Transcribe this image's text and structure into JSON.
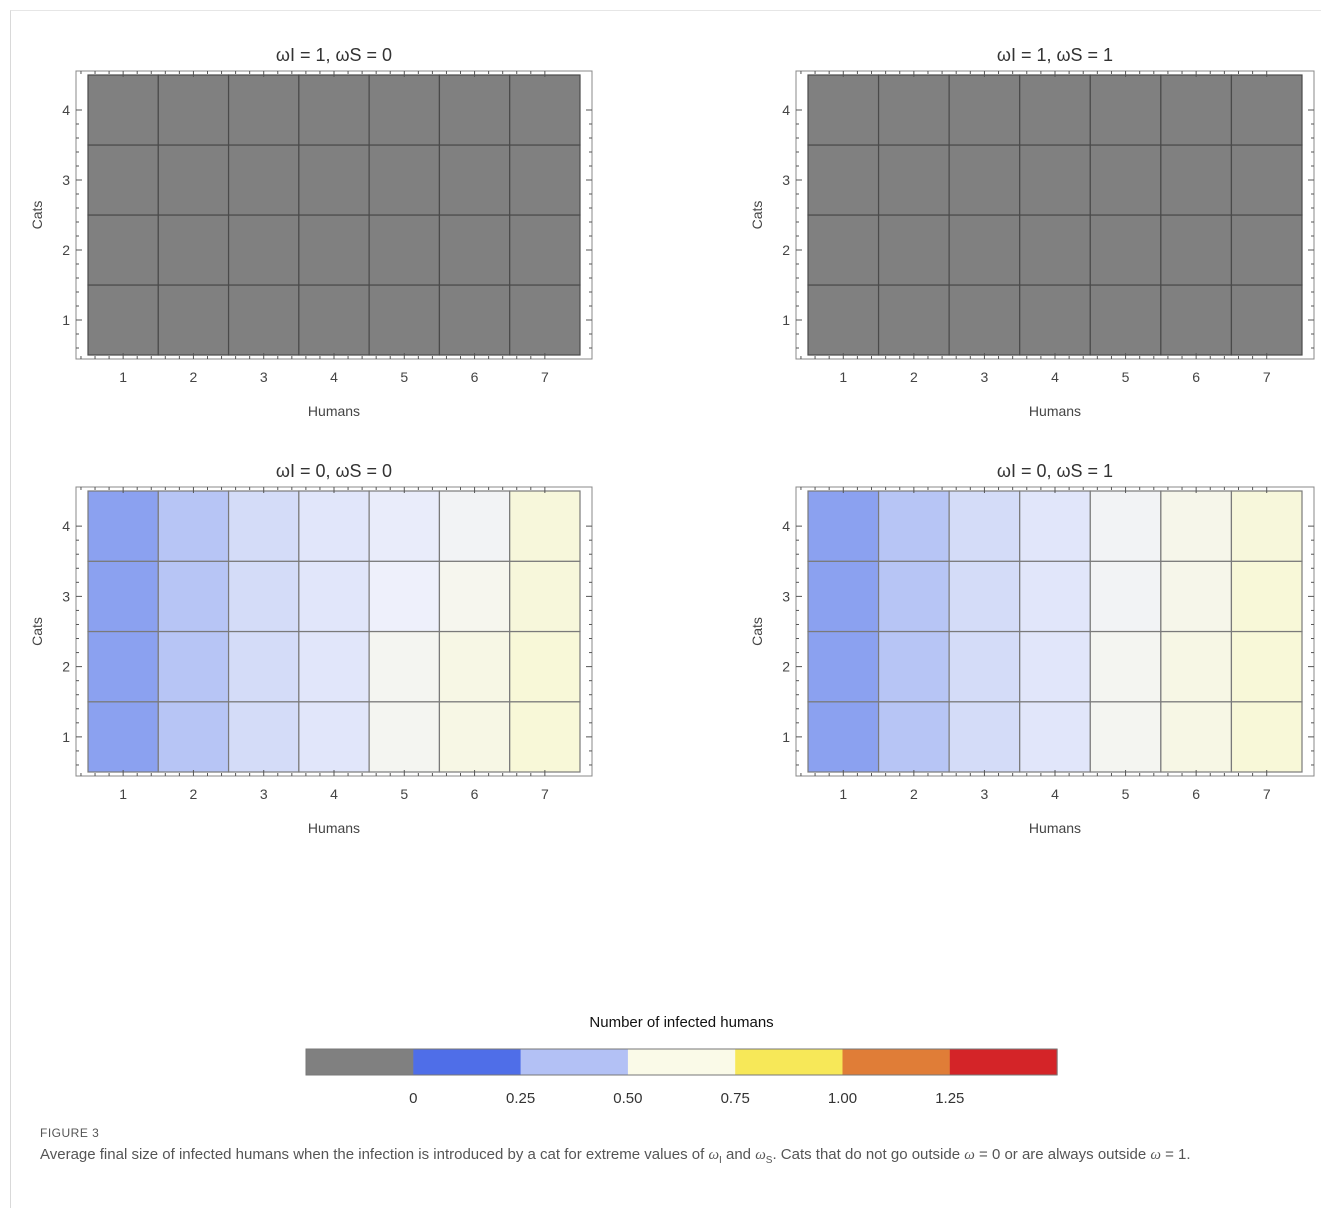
{
  "chart_data": [
    {
      "type": "heatmap",
      "title": "ωI = 1, ωS = 0",
      "xlabel": "Humans",
      "ylabel": "Cats",
      "x_categories": [
        "1",
        "2",
        "3",
        "4",
        "5",
        "6",
        "7"
      ],
      "y_categories": [
        "1",
        "2",
        "3",
        "4"
      ],
      "values": [
        [
          null,
          null,
          null,
          null,
          null,
          null,
          null
        ],
        [
          null,
          null,
          null,
          null,
          null,
          null,
          null
        ],
        [
          null,
          null,
          null,
          null,
          null,
          null,
          null
        ],
        [
          null,
          null,
          null,
          null,
          null,
          null,
          null
        ]
      ]
    },
    {
      "type": "heatmap",
      "title": "ωI = 1, ωS = 1",
      "xlabel": "Humans",
      "ylabel": "Cats",
      "x_categories": [
        "1",
        "2",
        "3",
        "4",
        "5",
        "6",
        "7"
      ],
      "y_categories": [
        "1",
        "2",
        "3",
        "4"
      ],
      "values": [
        [
          null,
          null,
          null,
          null,
          null,
          null,
          null
        ],
        [
          null,
          null,
          null,
          null,
          null,
          null,
          null
        ],
        [
          null,
          null,
          null,
          null,
          null,
          null,
          null
        ],
        [
          null,
          null,
          null,
          null,
          null,
          null,
          null
        ]
      ]
    },
    {
      "type": "heatmap",
      "title": "ωI = 0, ωS = 0",
      "xlabel": "Humans",
      "ylabel": "Cats",
      "x_categories": [
        "1",
        "2",
        "3",
        "4",
        "5",
        "6",
        "7"
      ],
      "y_categories": [
        "1",
        "2",
        "3",
        "4"
      ],
      "values": [
        [
          0.12,
          0.3,
          0.4,
          0.45,
          0.58,
          0.65,
          0.72
        ],
        [
          0.12,
          0.3,
          0.4,
          0.45,
          0.58,
          0.65,
          0.72
        ],
        [
          0.12,
          0.3,
          0.4,
          0.45,
          0.5,
          0.6,
          0.7
        ],
        [
          0.12,
          0.3,
          0.4,
          0.45,
          0.48,
          0.55,
          0.7
        ]
      ]
    },
    {
      "type": "heatmap",
      "title": "ωI = 0, ωS = 1",
      "xlabel": "Humans",
      "ylabel": "Cats",
      "x_categories": [
        "1",
        "2",
        "3",
        "4",
        "5",
        "6",
        "7"
      ],
      "y_categories": [
        "1",
        "2",
        "3",
        "4"
      ],
      "values": [
        [
          0.12,
          0.3,
          0.4,
          0.45,
          0.58,
          0.65,
          0.72
        ],
        [
          0.12,
          0.3,
          0.4,
          0.45,
          0.58,
          0.65,
          0.72
        ],
        [
          0.12,
          0.3,
          0.4,
          0.45,
          0.55,
          0.62,
          0.72
        ],
        [
          0.12,
          0.3,
          0.4,
          0.45,
          0.55,
          0.62,
          0.7
        ]
      ]
    }
  ],
  "legend": {
    "title": "Number of infected humans",
    "tick_labels": [
      "0",
      "0.25",
      "0.50",
      "0.75",
      "1.00",
      "1.25"
    ],
    "colors": [
      "#808080",
      "#4f6ee8",
      "#b3c1f5",
      "#fafae8",
      "#f7e858",
      "#e07d37",
      "#d42428"
    ]
  },
  "caption": {
    "label": "FIGURE 3",
    "text_1": "Average final size of infected humans when the infection is introduced by a cat for extreme values of ",
    "sym_1": "ω",
    "sub_1": "I",
    "text_2": " and ",
    "sym_2": "ω",
    "sub_2": "S",
    "text_3": ". Cats that do not go outside ",
    "sym_3": "ω",
    "text_4": " = 0 or are always outside ",
    "sym_4": "ω",
    "text_5": " = 1."
  }
}
